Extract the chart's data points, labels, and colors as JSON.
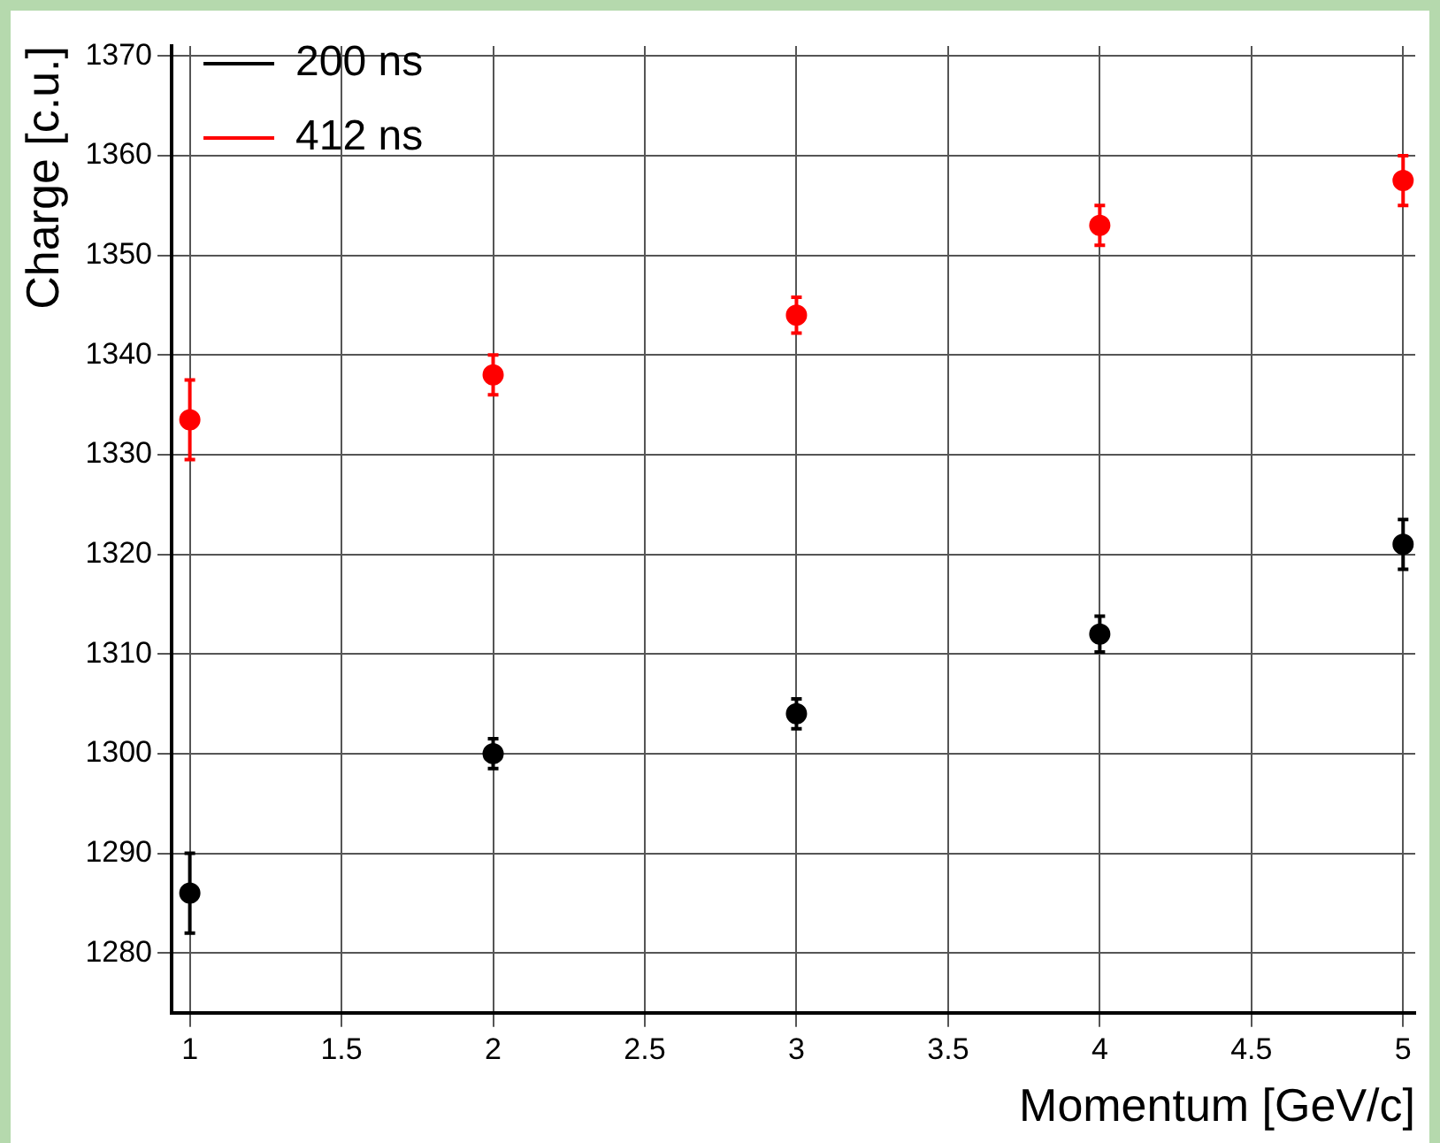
{
  "chart_data": {
    "type": "scatter",
    "xlabel": "Momentum [GeV/c]",
    "ylabel": "Charge [c.u.]",
    "x": [
      1,
      2,
      3,
      4,
      5
    ],
    "series": [
      {
        "name": "200 ns",
        "color": "#000000",
        "values": [
          1286,
          1300,
          1304,
          1312,
          1321
        ],
        "errors": [
          4,
          1.5,
          1.5,
          1.8,
          2.5
        ]
      },
      {
        "name": "412 ns",
        "color": "#ff0000",
        "values": [
          1333.5,
          1338,
          1344,
          1353,
          1357.5
        ],
        "errors": [
          4,
          2,
          1.8,
          2,
          2.5
        ]
      }
    ],
    "xlim": [
      0.94,
      5.04
    ],
    "xticks": [
      1,
      1.5,
      2,
      2.5,
      3,
      3.5,
      4,
      4.5,
      5
    ],
    "ylim": [
      1274,
      1371
    ],
    "yticks": [
      1280,
      1290,
      1300,
      1310,
      1320,
      1330,
      1340,
      1350,
      1360,
      1370
    ],
    "grid": true,
    "legend": "top left",
    "marker": "circle"
  }
}
